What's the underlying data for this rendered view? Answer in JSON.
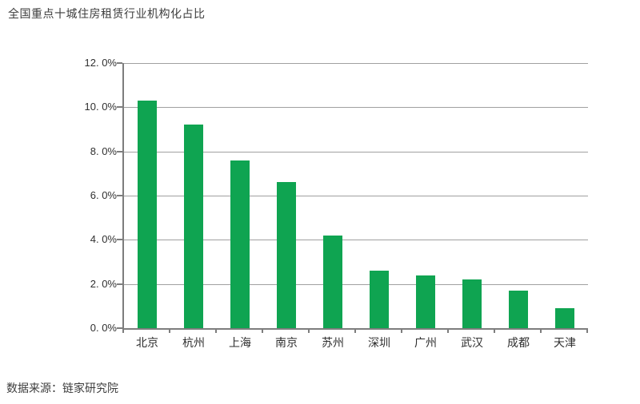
{
  "header": {
    "title": "全国重点十城住房租赁行业机构化占比"
  },
  "footer": {
    "source": "数据来源：链家研究院"
  },
  "chart_data": {
    "type": "bar",
    "title": "全国重点十城住房租赁行业机构化占比",
    "categories": [
      "北京",
      "杭州",
      "上海",
      "南京",
      "苏州",
      "深圳",
      "广州",
      "武汉",
      "成都",
      "天津"
    ],
    "values": [
      10.3,
      9.2,
      7.6,
      6.6,
      4.2,
      2.6,
      2.4,
      2.2,
      1.7,
      0.9
    ],
    "unit": "%",
    "xlabel": "",
    "ylabel": "",
    "ylim": [
      0,
      12
    ],
    "y_tick_step": 2,
    "y_tick_labels": [
      "0. 0%",
      "2. 0%",
      "4. 0%",
      "6. 0%",
      "8. 0%",
      "10. 0%",
      "12. 0%"
    ],
    "legend": null,
    "grid": true,
    "bar_color": "#0FA451",
    "axis_color": "#7d7d7d",
    "gridline_color": "#a0a0a0",
    "source": "数据来源：链家研究院"
  }
}
